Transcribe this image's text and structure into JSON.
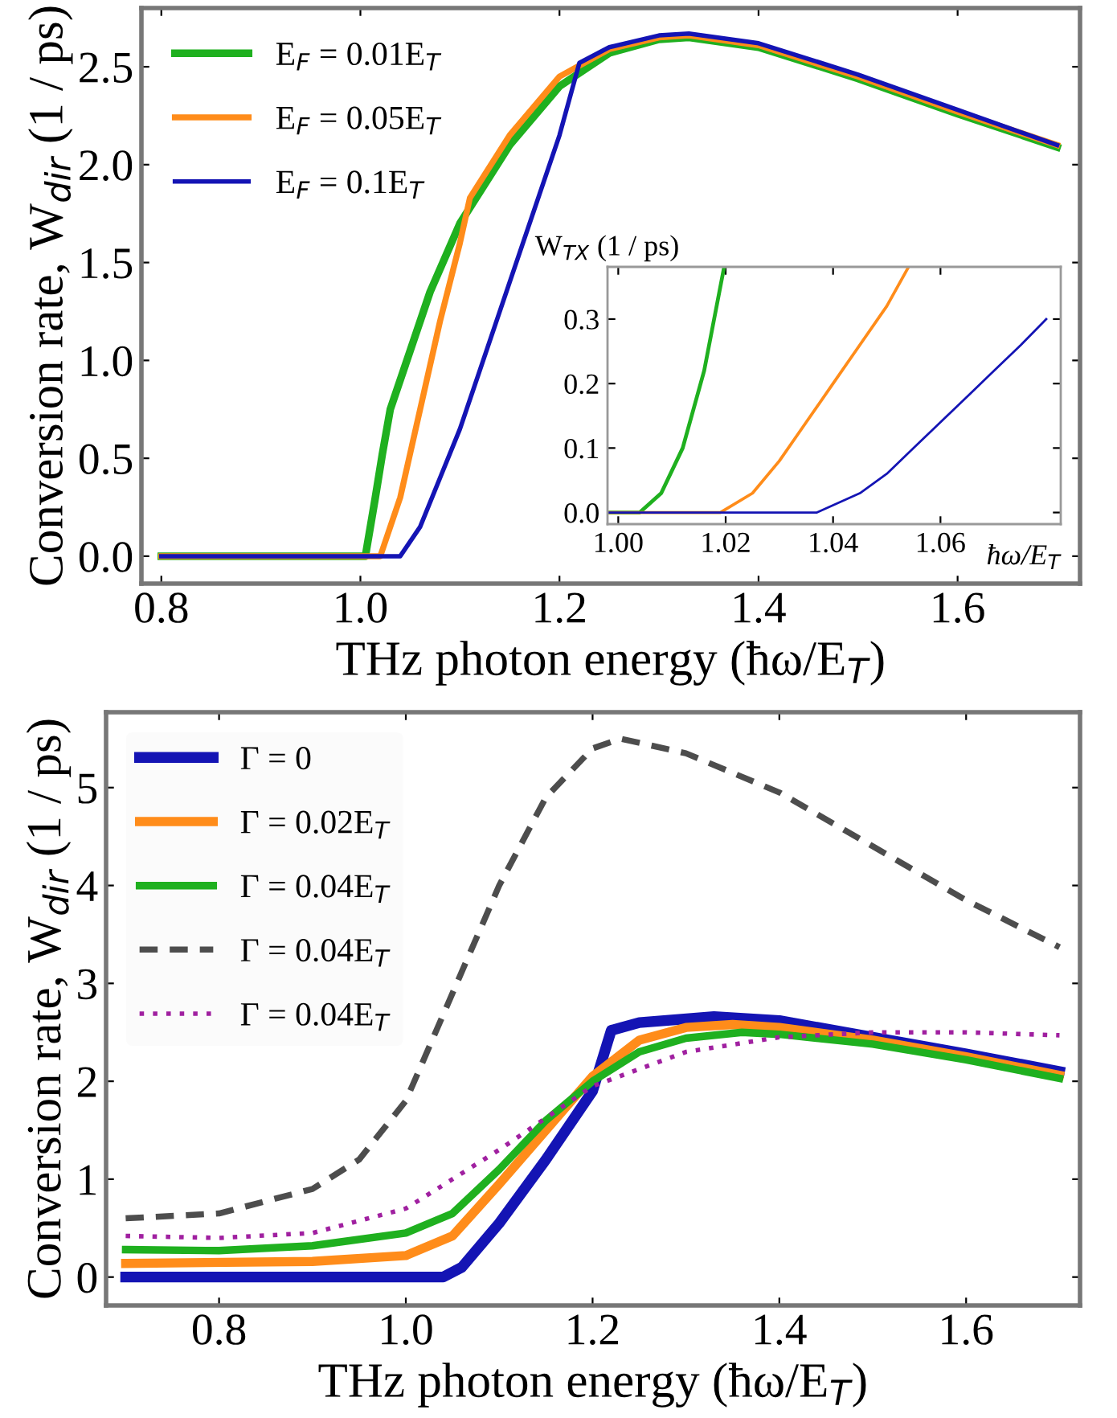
{
  "chart_data": [
    {
      "type": "line",
      "xlabel": "THz photon energy (ħω/E$_{T}$)",
      "ylabel": "Conversion rate, W$_{dir}$ (1 / ps)",
      "xlim": [
        0.78,
        1.723
      ],
      "ylim": [
        -0.14,
        2.8
      ],
      "xticks": [
        {
          "value": 0.8,
          "label": "0.8"
        },
        {
          "value": 1.0,
          "label": "1.0"
        },
        {
          "value": 1.2,
          "label": "1.2"
        },
        {
          "value": 1.4,
          "label": "1.4"
        },
        {
          "value": 1.6,
          "label": "1.6"
        }
      ],
      "yticks": [
        {
          "value": 0.0,
          "label": "0.0"
        },
        {
          "value": 0.5,
          "label": "0.5"
        },
        {
          "value": 1.0,
          "label": "1.0"
        },
        {
          "value": 1.5,
          "label": "1.5"
        },
        {
          "value": 2.0,
          "label": "2.0"
        },
        {
          "value": 2.5,
          "label": "2.5"
        }
      ],
      "grid": false,
      "legend": "top left",
      "marker": "none",
      "series": [
        {
          "name": "E$_{F}$ = 0.01E$_{T}$",
          "color": "#1fb01f",
          "x": [
            0.8,
            1.005,
            1.015,
            1.022,
            1.03,
            1.05,
            1.07,
            1.1,
            1.15,
            1.2,
            1.25,
            1.3,
            1.33,
            1.4,
            1.5,
            1.6,
            1.7
          ],
          "values": [
            0,
            0,
            0.3,
            0.52,
            0.75,
            1.05,
            1.35,
            1.7,
            2.1,
            2.4,
            2.57,
            2.64,
            2.65,
            2.6,
            2.44,
            2.26,
            2.09
          ]
        },
        {
          "name": "E$_{F}$ = 0.05E$_{T}$",
          "color": "#ff8c1a",
          "x": [
            0.8,
            1.02,
            1.04,
            1.06,
            1.08,
            1.1,
            1.11,
            1.15,
            1.2,
            1.25,
            1.3,
            1.33,
            1.4,
            1.5,
            1.6,
            1.7
          ],
          "values": [
            0,
            0,
            0.3,
            0.75,
            1.2,
            1.6,
            1.83,
            2.15,
            2.45,
            2.59,
            2.65,
            2.66,
            2.61,
            2.45,
            2.27,
            2.1
          ]
        },
        {
          "name": "E$_{F}$ = 0.1E$_{T}$",
          "color": "#1414b4",
          "x": [
            0.8,
            1.04,
            1.06,
            1.08,
            1.1,
            1.12,
            1.15,
            1.18,
            1.2,
            1.22,
            1.25,
            1.3,
            1.33,
            1.4,
            1.5,
            1.6,
            1.7
          ],
          "values": [
            0,
            0,
            0.15,
            0.4,
            0.65,
            0.95,
            1.4,
            1.85,
            2.15,
            2.52,
            2.6,
            2.66,
            2.67,
            2.62,
            2.46,
            2.28,
            2.1
          ]
        }
      ]
    },
    {
      "type": "line",
      "xlabel": "ħω/E$_{T}$",
      "ylabel": "W$_{TX}$ (1 / ps)",
      "xlim": [
        0.998,
        1.0824
      ],
      "ylim": [
        -0.018,
        0.381
      ],
      "xticks": [
        {
          "value": 1.0,
          "label": "1.00"
        },
        {
          "value": 1.02,
          "label": "1.02"
        },
        {
          "value": 1.04,
          "label": "1.04"
        },
        {
          "value": 1.06,
          "label": "1.06"
        }
      ],
      "yticks": [
        {
          "value": 0.0,
          "label": "0.0"
        },
        {
          "value": 0.1,
          "label": "0.1"
        },
        {
          "value": 0.2,
          "label": "0.2"
        },
        {
          "value": 0.3,
          "label": "0.3"
        }
      ],
      "grid": false,
      "marker": "none",
      "series": [
        {
          "color": "#1fb01f",
          "x": [
            0.998,
            1.004,
            1.008,
            1.012,
            1.016,
            1.0197
          ],
          "values": [
            0,
            0,
            0.03,
            0.1,
            0.22,
            0.38
          ]
        },
        {
          "color": "#ff8c1a",
          "x": [
            0.998,
            1.019,
            1.025,
            1.03,
            1.035,
            1.04,
            1.045,
            1.05,
            1.054
          ],
          "values": [
            0,
            0,
            0.03,
            0.08,
            0.14,
            0.2,
            0.26,
            0.32,
            0.38
          ]
        },
        {
          "color": "#1414b4",
          "x": [
            0.998,
            1.037,
            1.045,
            1.05,
            1.055,
            1.06,
            1.065,
            1.07,
            1.075,
            1.0797
          ],
          "values": [
            0,
            0,
            0.03,
            0.06,
            0.1,
            0.14,
            0.18,
            0.22,
            0.26,
            0.3
          ]
        }
      ]
    },
    {
      "type": "line",
      "xlabel": "THz photon energy (ħω/E$_{T}$)",
      "ylabel": "Conversion rate, W$_{dir}$ (1 / ps)",
      "xlim": [
        0.679,
        1.722
      ],
      "ylim": [
        -0.29,
        5.77
      ],
      "xticks": [
        {
          "value": 0.8,
          "label": "0.8"
        },
        {
          "value": 1.0,
          "label": "1.0"
        },
        {
          "value": 1.2,
          "label": "1.2"
        },
        {
          "value": 1.4,
          "label": "1.4"
        },
        {
          "value": 1.6,
          "label": "1.6"
        }
      ],
      "yticks": [
        0,
        1,
        2,
        3,
        4,
        5
      ],
      "grid": false,
      "legend": "top left",
      "marker": "none",
      "series": [
        {
          "name": "Γ = 0",
          "color": "#1414b4",
          "line_style": "solid",
          "x": [
            0.7,
            1.04,
            1.06,
            1.1,
            1.15,
            1.2,
            1.22,
            1.25,
            1.33,
            1.4,
            1.5,
            1.6,
            1.7
          ],
          "values": [
            0,
            0,
            0.1,
            0.55,
            1.2,
            1.9,
            2.52,
            2.6,
            2.66,
            2.62,
            2.45,
            2.28,
            2.1
          ]
        },
        {
          "name": "Γ = 0.02E$_{T}$",
          "color": "#ff8c1a",
          "line_style": "solid",
          "x": [
            0.7,
            0.9,
            1.0,
            1.05,
            1.1,
            1.15,
            1.2,
            1.25,
            1.3,
            1.35,
            1.4,
            1.5,
            1.6,
            1.7
          ],
          "values": [
            0.14,
            0.16,
            0.22,
            0.42,
            0.95,
            1.5,
            2.05,
            2.42,
            2.55,
            2.58,
            2.55,
            2.42,
            2.25,
            2.06
          ]
        },
        {
          "name": "Γ = 0.04E$_{T}$",
          "color": "#1fb01f",
          "line_style": "solid",
          "x": [
            0.7,
            0.8,
            0.9,
            1.0,
            1.05,
            1.1,
            1.15,
            1.2,
            1.25,
            1.3,
            1.36,
            1.4,
            1.5,
            1.6,
            1.7
          ],
          "values": [
            0.28,
            0.27,
            0.32,
            0.45,
            0.65,
            1.1,
            1.6,
            2.0,
            2.3,
            2.44,
            2.5,
            2.48,
            2.38,
            2.22,
            2.03
          ]
        },
        {
          "name": "Γ = 0.04E$_{T}$",
          "color": "#4d4d4d",
          "line_style": "dashed",
          "x": [
            0.7,
            0.8,
            0.9,
            0.95,
            1.0,
            1.05,
            1.1,
            1.15,
            1.2,
            1.23,
            1.3,
            1.4,
            1.5,
            1.6,
            1.7
          ],
          "values": [
            0.6,
            0.65,
            0.9,
            1.2,
            1.8,
            2.9,
            4.0,
            4.9,
            5.4,
            5.5,
            5.35,
            4.95,
            4.4,
            3.85,
            3.37
          ]
        },
        {
          "name": "Γ = 0.04E$_{T}$",
          "color": "#a020a0",
          "line_style": "dotted",
          "x": [
            0.7,
            0.8,
            0.9,
            1.0,
            1.1,
            1.2,
            1.3,
            1.4,
            1.5,
            1.6,
            1.7
          ],
          "values": [
            0.42,
            0.4,
            0.45,
            0.7,
            1.3,
            1.95,
            2.3,
            2.45,
            2.5,
            2.5,
            2.47
          ]
        }
      ]
    }
  ]
}
